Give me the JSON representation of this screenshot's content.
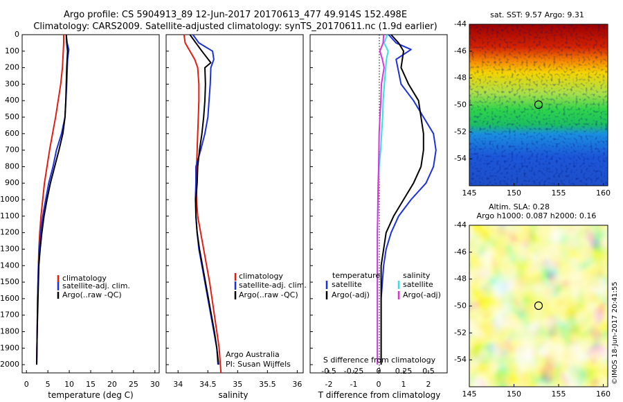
{
  "title": {
    "line1": "Argo profile: CS 5904913_89 12-Jun-2017 20170613_477 49.914S 152.498E",
    "line2": "Climatology: CARS2009. Satellite-adjusted climatology: synTS_20170611.nc (1.9d earlier)"
  },
  "colors": {
    "climatology": "#e8190f",
    "satellite": "#1c2fe0",
    "argo": "#000000",
    "sal_satellite": "#32e0e8",
    "sal_argo": "#e22ee2"
  },
  "credit": "©IMOS 18-Jun-2017 20:41:55",
  "chart_data": [
    {
      "type": "line",
      "xlabel": "temperature (deg C)",
      "ylabel": "",
      "xlim": [
        -1,
        31
      ],
      "ylim": [
        2050,
        0
      ],
      "xticks": [
        0,
        5,
        10,
        15,
        20,
        25,
        30
      ],
      "yticks": [
        0,
        100,
        200,
        300,
        400,
        500,
        600,
        700,
        800,
        900,
        1000,
        1100,
        1200,
        1300,
        1400,
        1500,
        1600,
        1700,
        1800,
        1900,
        2000
      ],
      "legend": [
        "climatology",
        "satellite-adj. clim.",
        "Argo(..raw -QC)"
      ],
      "series": [
        {
          "name": "climatology",
          "color": "#e8190f",
          "values": [
            [
              8.7,
              0
            ],
            [
              8.7,
              50
            ],
            [
              8.6,
              100
            ],
            [
              8.4,
              200
            ],
            [
              8.0,
              300
            ],
            [
              7.4,
              400
            ],
            [
              6.8,
              500
            ],
            [
              6.1,
              600
            ],
            [
              5.4,
              700
            ],
            [
              4.8,
              800
            ],
            [
              4.2,
              900
            ],
            [
              3.8,
              1000
            ],
            [
              3.4,
              1100
            ],
            [
              3.1,
              1200
            ],
            [
              2.9,
              1300
            ],
            [
              2.8,
              1400
            ],
            [
              2.6,
              1600
            ],
            [
              2.5,
              1800
            ],
            [
              2.4,
              2000
            ]
          ]
        },
        {
          "name": "satellite-adj. clim.",
          "color": "#1c2fe0",
          "values": [
            [
              9.3,
              0
            ],
            [
              9.5,
              50
            ],
            [
              9.9,
              90
            ],
            [
              9.6,
              150
            ],
            [
              9.4,
              300
            ],
            [
              9.2,
              400
            ],
            [
              9.0,
              500
            ],
            [
              8.2,
              600
            ],
            [
              7.0,
              700
            ],
            [
              6.2,
              800
            ],
            [
              5.2,
              900
            ],
            [
              4.5,
              1000
            ],
            [
              3.8,
              1100
            ],
            [
              3.3,
              1200
            ],
            [
              3.0,
              1300
            ],
            [
              2.8,
              1400
            ],
            [
              2.6,
              1600
            ],
            [
              2.5,
              1800
            ],
            [
              2.4,
              2000
            ]
          ]
        },
        {
          "name": "Argo(..raw -QC)",
          "color": "#000000",
          "values": [
            [
              9.3,
              0
            ],
            [
              9.4,
              50
            ],
            [
              9.6,
              100
            ],
            [
              9.4,
              200
            ],
            [
              9.3,
              300
            ],
            [
              9.2,
              400
            ],
            [
              9.0,
              500
            ],
            [
              8.5,
              600
            ],
            [
              7.6,
              700
            ],
            [
              6.6,
              800
            ],
            [
              5.6,
              900
            ],
            [
              4.8,
              1000
            ],
            [
              4.1,
              1100
            ],
            [
              3.6,
              1200
            ],
            [
              3.2,
              1300
            ],
            [
              2.9,
              1400
            ],
            [
              2.7,
              1600
            ],
            [
              2.5,
              1800
            ],
            [
              2.4,
              2000
            ]
          ]
        }
      ]
    },
    {
      "type": "line",
      "xlabel": "salinity",
      "xlim": [
        33.8,
        36.1
      ],
      "ylim": [
        2050,
        0
      ],
      "xticks": [
        34,
        34.5,
        35,
        35.5,
        36
      ],
      "legend": [
        "climatology",
        "satellite-adj. clim.",
        "Argo(..raw -QC)"
      ],
      "note": [
        "Argo Australia",
        "PI: Susan Wijffels"
      ],
      "series": [
        {
          "name": "climatology",
          "color": "#e8190f",
          "values": [
            [
              34.1,
              0
            ],
            [
              34.12,
              50
            ],
            [
              34.2,
              100
            ],
            [
              34.28,
              150
            ],
            [
              34.33,
              200
            ],
            [
              34.35,
              300
            ],
            [
              34.35,
              400
            ],
            [
              34.34,
              500
            ],
            [
              34.33,
              600
            ],
            [
              34.32,
              700
            ],
            [
              34.31,
              800
            ],
            [
              34.31,
              900
            ],
            [
              34.31,
              1000
            ],
            [
              34.33,
              1100
            ],
            [
              34.38,
              1200
            ],
            [
              34.43,
              1300
            ],
            [
              34.48,
              1400
            ],
            [
              34.53,
              1500
            ],
            [
              34.57,
              1600
            ],
            [
              34.61,
              1700
            ],
            [
              34.65,
              1800
            ],
            [
              34.69,
              1900
            ],
            [
              34.72,
              2050
            ]
          ]
        },
        {
          "name": "satellite-adj. clim.",
          "color": "#1c2fe0",
          "values": [
            [
              34.25,
              0
            ],
            [
              34.35,
              50
            ],
            [
              34.58,
              100
            ],
            [
              34.6,
              150
            ],
            [
              34.55,
              200
            ],
            [
              34.54,
              300
            ],
            [
              34.52,
              400
            ],
            [
              34.5,
              500
            ],
            [
              34.45,
              600
            ],
            [
              34.38,
              700
            ],
            [
              34.3,
              800
            ],
            [
              34.3,
              900
            ],
            [
              34.29,
              1000
            ],
            [
              34.3,
              1100
            ],
            [
              34.32,
              1200
            ],
            [
              34.35,
              1300
            ],
            [
              34.4,
              1400
            ],
            [
              34.45,
              1500
            ],
            [
              34.5,
              1600
            ],
            [
              34.55,
              1700
            ],
            [
              34.6,
              1800
            ],
            [
              34.65,
              1900
            ],
            [
              34.67,
              2000
            ]
          ]
        },
        {
          "name": "Argo(..raw -QC)",
          "color": "#000000",
          "values": [
            [
              34.2,
              0
            ],
            [
              34.3,
              50
            ],
            [
              34.4,
              100
            ],
            [
              34.55,
              170
            ],
            [
              34.45,
              200
            ],
            [
              34.46,
              300
            ],
            [
              34.45,
              400
            ],
            [
              34.43,
              500
            ],
            [
              34.4,
              600
            ],
            [
              34.36,
              700
            ],
            [
              34.33,
              800
            ],
            [
              34.32,
              900
            ],
            [
              34.3,
              1000
            ],
            [
              34.3,
              1100
            ],
            [
              34.32,
              1200
            ],
            [
              34.36,
              1300
            ],
            [
              34.41,
              1400
            ],
            [
              34.46,
              1500
            ],
            [
              34.51,
              1600
            ],
            [
              34.56,
              1700
            ],
            [
              34.61,
              1800
            ],
            [
              34.65,
              1900
            ],
            [
              34.68,
              2000
            ]
          ]
        }
      ]
    },
    {
      "type": "line",
      "xlabel": "T difference from climatology",
      "xlabel_top": "S difference from climatology",
      "xlim": [
        -2.75,
        2.75
      ],
      "ylim": [
        2050,
        0
      ],
      "xticks": [
        -2,
        -1,
        0,
        1,
        2
      ],
      "xticks_top": [
        "-0.5",
        "-0.25",
        "0",
        "0.25",
        "0.5"
      ],
      "legend_titles": [
        "temperature",
        "salinity"
      ],
      "legend": [
        "satellite",
        "Argo(-adj)",
        "satellite",
        "Argo(-adj)"
      ],
      "series": [
        {
          "name": "satellite",
          "color": "#1c2fe0",
          "values": [
            [
              0.4,
              0
            ],
            [
              0.7,
              50
            ],
            [
              1.3,
              90
            ],
            [
              0.7,
              150
            ],
            [
              0.9,
              300
            ],
            [
              1.4,
              400
            ],
            [
              1.8,
              500
            ],
            [
              2.2,
              600
            ],
            [
              2.3,
              700
            ],
            [
              2.2,
              800
            ],
            [
              1.9,
              900
            ],
            [
              1.3,
              1000
            ],
            [
              0.8,
              1100
            ],
            [
              0.5,
              1200
            ],
            [
              0.3,
              1300
            ],
            [
              0.2,
              1400
            ],
            [
              0.1,
              1600
            ],
            [
              0.1,
              2000
            ]
          ]
        },
        {
          "name": "Argo(-adj)",
          "color": "#000000",
          "values": [
            [
              0.5,
              0
            ],
            [
              0.8,
              50
            ],
            [
              1.0,
              100
            ],
            [
              0.9,
              200
            ],
            [
              1.2,
              300
            ],
            [
              1.6,
              400
            ],
            [
              1.7,
              500
            ],
            [
              1.8,
              600
            ],
            [
              1.8,
              700
            ],
            [
              1.7,
              800
            ],
            [
              1.4,
              900
            ],
            [
              1.0,
              1000
            ],
            [
              0.6,
              1100
            ],
            [
              0.3,
              1200
            ],
            [
              0.2,
              1300
            ],
            [
              0.1,
              1400
            ],
            [
              0.1,
              1600
            ],
            [
              0.1,
              2000
            ]
          ]
        },
        {
          "name": "salinity satellite",
          "color": "#32e0e8",
          "values": [
            [
              0.35,
              0
            ],
            [
              0.22,
              50
            ],
            [
              0.38,
              100
            ],
            [
              0.31,
              150
            ],
            [
              0.23,
              300
            ],
            [
              0.18,
              400
            ],
            [
              0.16,
              500
            ],
            [
              0.12,
              600
            ],
            [
              0.08,
              700
            ],
            [
              0.02,
              800
            ],
            [
              0.0,
              900
            ],
            [
              -0.02,
              1000
            ],
            [
              -0.04,
              1100
            ],
            [
              -0.05,
              1200
            ],
            [
              -0.05,
              1400
            ],
            [
              -0.05,
              1600
            ],
            [
              -0.05,
              1800
            ],
            [
              -0.05,
              2000
            ]
          ]
        },
        {
          "name": "salinity Argo(-adj)",
          "color": "#e22ee2",
          "values": [
            [
              0.2,
              0
            ],
            [
              0.18,
              50
            ],
            [
              0.05,
              100
            ],
            [
              0.15,
              150
            ],
            [
              0.22,
              200
            ],
            [
              0.11,
              300
            ],
            [
              0.09,
              400
            ],
            [
              0.05,
              500
            ],
            [
              0.02,
              600
            ],
            [
              0.01,
              700
            ],
            [
              0.0,
              800
            ],
            [
              -0.02,
              900
            ],
            [
              -0.03,
              1000
            ],
            [
              -0.04,
              1100
            ],
            [
              -0.05,
              1200
            ],
            [
              -0.05,
              1400
            ],
            [
              -0.05,
              1600
            ],
            [
              -0.05,
              1800
            ],
            [
              -0.05,
              2000
            ]
          ]
        }
      ]
    },
    {
      "type": "heatmap",
      "title": "sat. SST: 9.57  Argo: 9.31",
      "xlim": [
        145,
        160.5
      ],
      "ylim": [
        -56,
        -44
      ],
      "xticks": [
        145,
        150,
        155,
        160
      ],
      "yticks": [
        -44,
        -46,
        -48,
        -50,
        -52,
        -54
      ],
      "marker": [
        152.5,
        -49.9
      ]
    },
    {
      "type": "heatmap",
      "title_line1": "Altim. SLA: 0.28",
      "title_line2": "Argo h1000: 0.087 h2000: 0.16",
      "xlim": [
        145,
        160.5
      ],
      "ylim": [
        -56,
        -44
      ],
      "xticks": [
        145,
        150,
        155,
        160
      ],
      "yticks": [
        -44,
        -46,
        -48,
        -50,
        -52,
        -54
      ],
      "marker": [
        152.5,
        -49.9
      ]
    }
  ]
}
